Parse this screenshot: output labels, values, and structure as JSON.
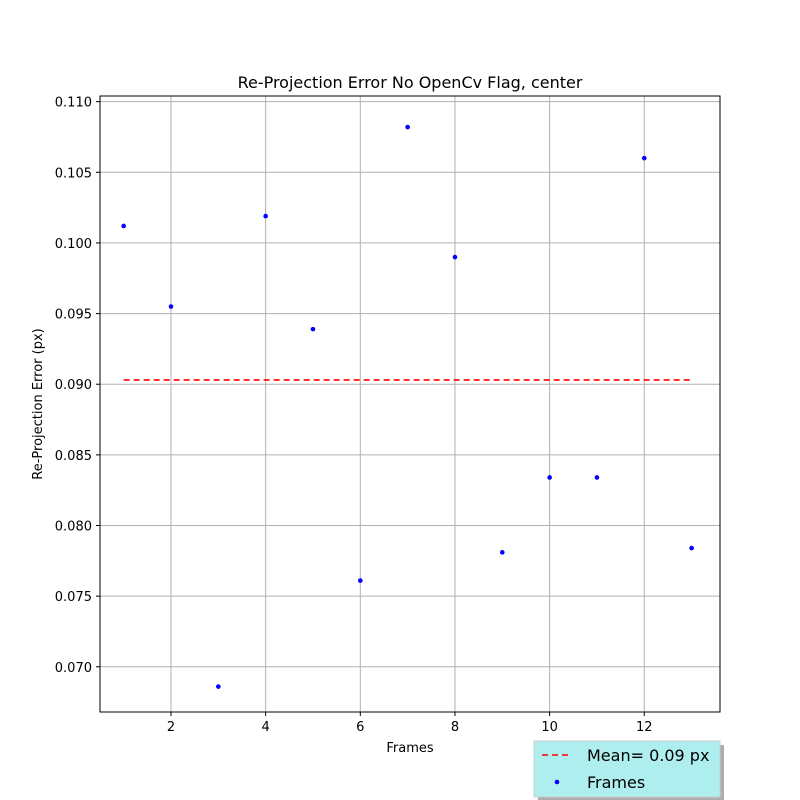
{
  "chart_data": {
    "type": "scatter",
    "title": "Re-Projection Error No OpenCv Flag, center",
    "xlabel": "Frames",
    "ylabel": "Re-Projection Error (px)",
    "xlim": [
      0.5,
      13.6
    ],
    "ylim": [
      0.0668,
      0.1104
    ],
    "xticks": [
      2,
      4,
      6,
      8,
      10,
      12
    ],
    "yticks": [
      0.07,
      0.075,
      0.08,
      0.085,
      0.09,
      0.095,
      0.1,
      0.105,
      0.11
    ],
    "ytick_labels": [
      "0.070",
      "0.075",
      "0.080",
      "0.085",
      "0.090",
      "0.095",
      "0.100",
      "0.105",
      "0.110"
    ],
    "grid": true,
    "series": [
      {
        "name": "Frames",
        "kind": "scatter",
        "color": "#0000ff",
        "x": [
          1,
          2,
          3,
          4,
          5,
          6,
          7,
          8,
          9,
          10,
          11,
          12,
          13
        ],
        "y": [
          0.1012,
          0.0955,
          0.0686,
          0.1019,
          0.0939,
          0.0761,
          0.1082,
          0.099,
          0.0781,
          0.0834,
          0.0834,
          0.106,
          0.0784
        ]
      },
      {
        "name": "Mean= 0.09 px",
        "kind": "line",
        "style": "dashed",
        "color": "#ff0000",
        "x": [
          1,
          13
        ],
        "y": [
          0.0903,
          0.0903
        ]
      }
    ],
    "legend": {
      "placement": "bottom-right",
      "background": "#afeeee",
      "entries": [
        "Mean= 0.09 px",
        "Frames"
      ]
    }
  }
}
